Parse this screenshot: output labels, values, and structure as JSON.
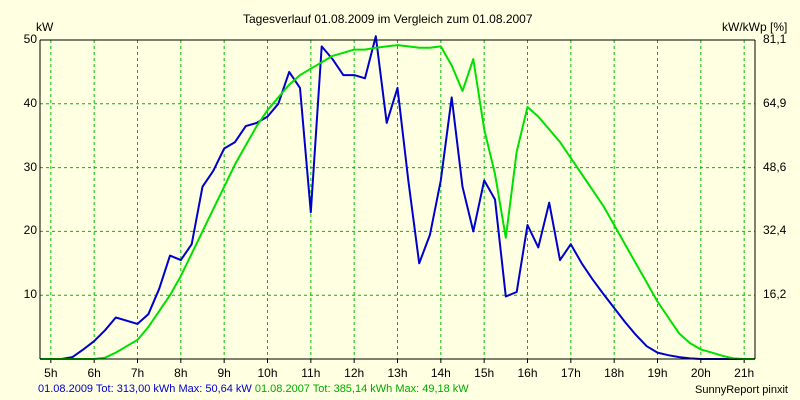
{
  "chart_data": {
    "type": "line",
    "title": "Tagesverlauf 01.08.2009 im Vergleich zum 01.08.2007",
    "ylabel_left": "kW",
    "ylabel_right": "kW/kWp [%]",
    "xlim": [
      4.75,
      21.25
    ],
    "ylim": [
      0,
      50
    ],
    "x_ticks": [
      5,
      6,
      7,
      8,
      9,
      10,
      11,
      12,
      13,
      14,
      15,
      16,
      17,
      18,
      19,
      20,
      21
    ],
    "x_tick_labels": [
      "5h",
      "6h",
      "7h",
      "8h",
      "9h",
      "10h",
      "11h",
      "12h",
      "13h",
      "14h",
      "15h",
      "16h",
      "17h",
      "18h",
      "19h",
      "20h",
      "21h"
    ],
    "y_ticks": [
      10,
      20,
      30,
      40,
      50
    ],
    "y_tick_labels": [
      "10",
      "20",
      "30",
      "40",
      "50"
    ],
    "right_ticks": [
      {
        "y": 10,
        "label": "16,2"
      },
      {
        "y": 20,
        "label": "32,4"
      },
      {
        "y": 30,
        "label": "48,6"
      },
      {
        "y": 40,
        "label": "64,9"
      },
      {
        "y": 50,
        "label": "81,1"
      }
    ],
    "grid": true,
    "series": [
      {
        "name": "01.08.2009",
        "color": "#0000cc",
        "points": [
          [
            4.75,
            0
          ],
          [
            5.0,
            0
          ],
          [
            5.25,
            0
          ],
          [
            5.5,
            0.3
          ],
          [
            5.75,
            1.5
          ],
          [
            6.0,
            2.8
          ],
          [
            6.25,
            4.5
          ],
          [
            6.5,
            6.5
          ],
          [
            6.75,
            6.0
          ],
          [
            7.0,
            5.5
          ],
          [
            7.25,
            7.0
          ],
          [
            7.5,
            11.0
          ],
          [
            7.75,
            16.2
          ],
          [
            8.0,
            15.5
          ],
          [
            8.25,
            18.0
          ],
          [
            8.5,
            27.0
          ],
          [
            8.75,
            29.5
          ],
          [
            9.0,
            33.0
          ],
          [
            9.25,
            34.0
          ],
          [
            9.5,
            36.5
          ],
          [
            9.75,
            37.0
          ],
          [
            10.0,
            38.0
          ],
          [
            10.25,
            40.0
          ],
          [
            10.5,
            45.0
          ],
          [
            10.75,
            42.5
          ],
          [
            11.0,
            23.0
          ],
          [
            11.25,
            49.0
          ],
          [
            11.5,
            47.0
          ],
          [
            11.75,
            44.5
          ],
          [
            12.0,
            44.5
          ],
          [
            12.25,
            44.0
          ],
          [
            12.5,
            50.6
          ],
          [
            12.75,
            37.0
          ],
          [
            13.0,
            42.5
          ],
          [
            13.25,
            28.0
          ],
          [
            13.5,
            15.0
          ],
          [
            13.75,
            19.5
          ],
          [
            14.0,
            28.0
          ],
          [
            14.25,
            41.0
          ],
          [
            14.5,
            27.0
          ],
          [
            14.75,
            20.0
          ],
          [
            15.0,
            28.0
          ],
          [
            15.25,
            25.0
          ],
          [
            15.5,
            9.8
          ],
          [
            15.75,
            10.5
          ],
          [
            16.0,
            21.0
          ],
          [
            16.25,
            17.5
          ],
          [
            16.5,
            24.5
          ],
          [
            16.75,
            15.5
          ],
          [
            17.0,
            18.0
          ],
          [
            17.25,
            15.0
          ],
          [
            17.5,
            12.5
          ],
          [
            17.75,
            10.2
          ],
          [
            18.0,
            8.0
          ],
          [
            18.25,
            5.8
          ],
          [
            18.5,
            3.8
          ],
          [
            18.75,
            2.0
          ],
          [
            19.0,
            1.0
          ],
          [
            19.25,
            0.6
          ],
          [
            19.5,
            0.3
          ],
          [
            19.75,
            0.1
          ],
          [
            20.0,
            0
          ],
          [
            21.25,
            0
          ]
        ]
      },
      {
        "name": "01.08.2007",
        "color": "#00e000",
        "points": [
          [
            4.75,
            0
          ],
          [
            5.5,
            0
          ],
          [
            6.0,
            0
          ],
          [
            6.25,
            0.2
          ],
          [
            6.5,
            1.0
          ],
          [
            6.75,
            2.0
          ],
          [
            7.0,
            3.0
          ],
          [
            7.25,
            5.0
          ],
          [
            7.5,
            7.5
          ],
          [
            7.75,
            10.0
          ],
          [
            8.0,
            13.0
          ],
          [
            8.25,
            16.5
          ],
          [
            8.5,
            20.0
          ],
          [
            8.75,
            23.5
          ],
          [
            9.0,
            27.0
          ],
          [
            9.25,
            30.5
          ],
          [
            9.5,
            33.5
          ],
          [
            9.75,
            36.5
          ],
          [
            10.0,
            39.0
          ],
          [
            10.25,
            41.0
          ],
          [
            10.5,
            43.0
          ],
          [
            10.75,
            44.5
          ],
          [
            11.0,
            45.5
          ],
          [
            11.25,
            46.5
          ],
          [
            11.5,
            47.5
          ],
          [
            11.75,
            48.0
          ],
          [
            12.0,
            48.5
          ],
          [
            12.25,
            48.5
          ],
          [
            12.5,
            48.8
          ],
          [
            12.75,
            49.0
          ],
          [
            13.0,
            49.2
          ],
          [
            13.25,
            49.0
          ],
          [
            13.5,
            48.8
          ],
          [
            13.75,
            48.8
          ],
          [
            14.0,
            49.0
          ],
          [
            14.25,
            46.0
          ],
          [
            14.5,
            42.0
          ],
          [
            14.75,
            47.0
          ],
          [
            15.0,
            36.0
          ],
          [
            15.25,
            29.0
          ],
          [
            15.5,
            19.0
          ],
          [
            15.75,
            32.5
          ],
          [
            16.0,
            39.5
          ],
          [
            16.25,
            38.0
          ],
          [
            16.5,
            36.0
          ],
          [
            16.75,
            34.0
          ],
          [
            17.0,
            31.5
          ],
          [
            17.25,
            29.0
          ],
          [
            17.5,
            26.5
          ],
          [
            17.75,
            24.0
          ],
          [
            18.0,
            21.0
          ],
          [
            18.25,
            18.0
          ],
          [
            18.5,
            15.0
          ],
          [
            18.75,
            12.0
          ],
          [
            19.0,
            9.0
          ],
          [
            19.25,
            6.5
          ],
          [
            19.5,
            4.0
          ],
          [
            19.75,
            2.5
          ],
          [
            20.0,
            1.5
          ],
          [
            20.25,
            1.0
          ],
          [
            20.5,
            0.5
          ],
          [
            20.75,
            0.1
          ],
          [
            21.0,
            0
          ],
          [
            21.25,
            0
          ]
        ]
      }
    ],
    "footer": {
      "stats_2009": "01.08.2009 Tot: 313,00 kWh Max: 50,64 kW",
      "stats_2007": "01.08.2007 Tot: 385,14 kWh Max: 49,18 kW",
      "credit": "SunnyReport pinxit"
    }
  },
  "colors": {
    "background": "#ffffe1",
    "gridlines": "#00bb00",
    "axis": "#000000"
  }
}
